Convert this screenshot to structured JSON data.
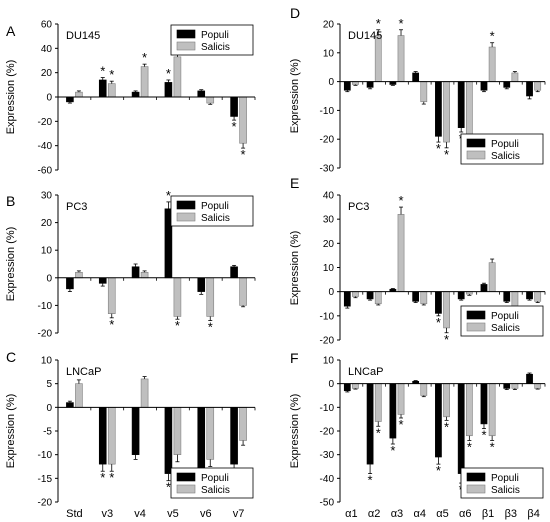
{
  "chart_data": [
    {
      "type": "bar",
      "panel": "A",
      "cell_line": "DU145",
      "ylabel": "Expression (%)",
      "ylim": [
        -60,
        60
      ],
      "yticks": [
        -60,
        -40,
        -20,
        0,
        20,
        40,
        60
      ],
      "categories": [
        "Std",
        "v3",
        "v4",
        "v5",
        "v6",
        "v7"
      ],
      "series": [
        {
          "name": "Populi",
          "color": "#000000",
          "values": [
            -4,
            14,
            4,
            12,
            5,
            -16
          ],
          "errors": [
            1,
            2,
            1,
            2,
            1,
            3
          ],
          "significant": [
            false,
            true,
            false,
            true,
            false,
            true
          ]
        },
        {
          "name": "Salicis",
          "color": "#bfbfbf",
          "values": [
            4,
            11,
            25,
            33,
            -5,
            -38
          ],
          "errors": [
            1,
            2,
            2,
            3,
            1,
            4
          ],
          "significant": [
            false,
            true,
            true,
            true,
            false,
            true
          ]
        }
      ],
      "legend": "top-right",
      "show_category_labels": false
    },
    {
      "type": "bar",
      "panel": "B",
      "cell_line": "PC3",
      "ylabel": "Expression (%)",
      "ylim": [
        -20,
        30
      ],
      "yticks": [
        -20,
        -10,
        0,
        10,
        20,
        30
      ],
      "categories": [
        "Std",
        "v3",
        "v4",
        "v5",
        "v6",
        "v7"
      ],
      "series": [
        {
          "name": "Populi",
          "color": "#000000",
          "values": [
            -4,
            -2,
            4,
            25,
            -5,
            4
          ],
          "errors": [
            1,
            1,
            1,
            2.5,
            1,
            0.5
          ],
          "significant": [
            false,
            false,
            false,
            true,
            false,
            false
          ]
        },
        {
          "name": "Salicis",
          "color": "#bfbfbf",
          "values": [
            2,
            -13,
            2,
            -14,
            -14,
            -10
          ],
          "errors": [
            0.5,
            1.5,
            0.5,
            1,
            1.5,
            0.5
          ],
          "significant": [
            false,
            true,
            false,
            true,
            true,
            false
          ]
        }
      ],
      "legend": "top-right",
      "show_category_labels": false
    },
    {
      "type": "bar",
      "panel": "C",
      "cell_line": "LNCaP",
      "ylabel": "Expression (%)",
      "ylim": [
        -20,
        10
      ],
      "yticks": [
        -20,
        -15,
        -10,
        -5,
        0,
        5,
        10
      ],
      "categories": [
        "Std",
        "v3",
        "v4",
        "v5",
        "v6",
        "v7"
      ],
      "series": [
        {
          "name": "Populi",
          "color": "#000000",
          "values": [
            1,
            -12,
            -10,
            -14,
            -13,
            -12
          ],
          "errors": [
            0.3,
            1.5,
            1,
            1.5,
            1,
            1
          ],
          "significant": [
            false,
            true,
            false,
            true,
            true,
            true
          ]
        },
        {
          "name": "Salicis",
          "color": "#bfbfbf",
          "values": [
            5,
            -12,
            6,
            -10,
            -11,
            -7
          ],
          "errors": [
            0.8,
            1.5,
            0.5,
            1.5,
            1.5,
            1
          ],
          "significant": [
            false,
            true,
            false,
            false,
            true,
            false
          ]
        }
      ],
      "legend": "bottom-right",
      "show_category_labels": true
    },
    {
      "type": "bar",
      "panel": "D",
      "cell_line": "DU145",
      "ylabel": "Expression (%)",
      "ylim": [
        -30,
        20
      ],
      "yticks": [
        -30,
        -20,
        -10,
        0,
        10,
        20
      ],
      "categories": [
        "α1",
        "α2",
        "α3",
        "α4",
        "α5",
        "α6",
        "β1",
        "β3",
        "β4"
      ],
      "series": [
        {
          "name": "Populi",
          "color": "#000000",
          "values": [
            -3,
            -2,
            -1,
            3,
            -19,
            -16,
            -3,
            -2,
            -5
          ],
          "errors": [
            0.5,
            0.5,
            0.3,
            0.5,
            2,
            1.5,
            0.5,
            0.5,
            1
          ],
          "significant": [
            false,
            false,
            false,
            false,
            true,
            true,
            false,
            false,
            false
          ]
        },
        {
          "name": "Salicis",
          "color": "#bfbfbf",
          "values": [
            -1,
            16,
            16,
            -7,
            -21,
            -19,
            12,
            3,
            -3
          ],
          "errors": [
            0.3,
            2,
            2,
            0.8,
            2,
            2,
            1.5,
            0.5,
            0.5
          ],
          "significant": [
            false,
            true,
            true,
            false,
            true,
            true,
            true,
            false,
            false
          ]
        }
      ],
      "legend": "bottom-right",
      "show_category_labels": false
    },
    {
      "type": "bar",
      "panel": "E",
      "cell_line": "PC3",
      "ylabel": "Expression (%)",
      "ylim": [
        -20,
        40
      ],
      "yticks": [
        -20,
        -10,
        0,
        10,
        20,
        30,
        40
      ],
      "categories": [
        "α1",
        "α2",
        "α3",
        "α4",
        "α5",
        "α6",
        "β1",
        "β3",
        "β4"
      ],
      "series": [
        {
          "name": "Populi",
          "color": "#000000",
          "values": [
            -6,
            -3,
            1,
            -4,
            -9,
            -3,
            3,
            -4,
            -3
          ],
          "errors": [
            0.8,
            0.5,
            0.3,
            0.5,
            1,
            0.5,
            0.5,
            0.5,
            0.5
          ],
          "significant": [
            false,
            false,
            false,
            false,
            true,
            false,
            false,
            false,
            false
          ]
        },
        {
          "name": "Salicis",
          "color": "#bfbfbf",
          "values": [
            -2,
            -5,
            32,
            -5,
            -15,
            -1,
            12,
            -6,
            -4
          ],
          "errors": [
            0.5,
            0.5,
            3,
            0.5,
            2,
            0.5,
            1.5,
            0.8,
            0.5
          ],
          "significant": [
            false,
            false,
            true,
            false,
            true,
            false,
            false,
            false,
            false
          ]
        }
      ],
      "legend": "bottom-right",
      "show_category_labels": false
    },
    {
      "type": "bar",
      "panel": "F",
      "cell_line": "LNCaP",
      "ylabel": "Expression (%)",
      "ylim": [
        -50,
        10
      ],
      "yticks": [
        -50,
        -40,
        -30,
        -20,
        -10,
        0,
        10
      ],
      "categories": [
        "α1",
        "α2",
        "α3",
        "α4",
        "α5",
        "α6",
        "β1",
        "β3",
        "β4"
      ],
      "series": [
        {
          "name": "Populi",
          "color": "#000000",
          "values": [
            -3,
            -34,
            -23,
            1,
            -31,
            -38,
            -17,
            -2,
            4
          ],
          "errors": [
            0.5,
            4,
            2.5,
            0.3,
            3,
            4,
            2,
            0.5,
            0.5
          ],
          "significant": [
            false,
            true,
            true,
            false,
            true,
            true,
            true,
            false,
            false
          ]
        },
        {
          "name": "Salicis",
          "color": "#bfbfbf",
          "values": [
            -2,
            -16,
            -13,
            -5,
            -14,
            -22,
            -22,
            -2,
            -2
          ],
          "errors": [
            0.3,
            2,
            1.5,
            0.5,
            1.5,
            2,
            2,
            0.5,
            0.3
          ],
          "significant": [
            false,
            true,
            true,
            false,
            true,
            true,
            true,
            false,
            false
          ]
        }
      ],
      "legend": "bottom-right",
      "show_category_labels": true
    }
  ]
}
